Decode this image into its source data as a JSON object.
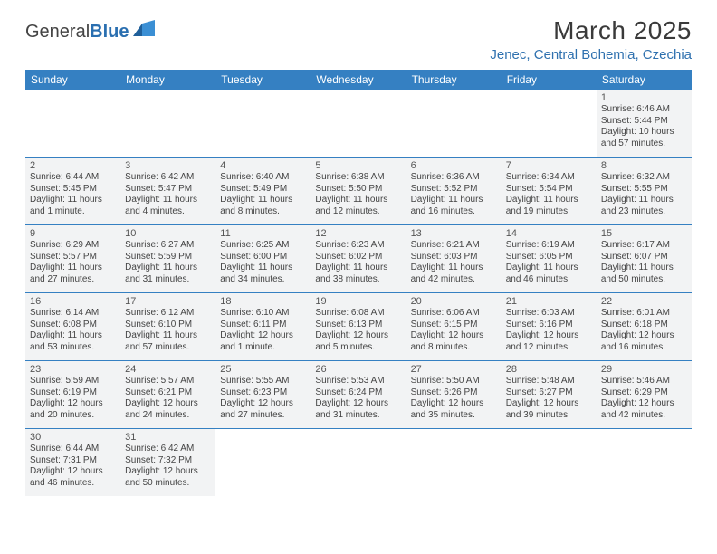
{
  "brand": {
    "part1": "General",
    "part2": "Blue"
  },
  "title": "March 2025",
  "location": "Jenec, Central Bohemia, Czechia",
  "colors": {
    "header_bg": "#3580c2",
    "header_text": "#ffffff",
    "cell_bg": "#f2f3f4",
    "rule": "#3580c2",
    "location_text": "#2f71af",
    "logo_blue": "#2a6fb0"
  },
  "weekdays": [
    "Sunday",
    "Monday",
    "Tuesday",
    "Wednesday",
    "Thursday",
    "Friday",
    "Saturday"
  ],
  "weeks": [
    [
      null,
      null,
      null,
      null,
      null,
      null,
      {
        "n": "1",
        "sunrise": "Sunrise: 6:46 AM",
        "sunset": "Sunset: 5:44 PM",
        "daylight1": "Daylight: 10 hours",
        "daylight2": "and 57 minutes."
      }
    ],
    [
      {
        "n": "2",
        "sunrise": "Sunrise: 6:44 AM",
        "sunset": "Sunset: 5:45 PM",
        "daylight1": "Daylight: 11 hours",
        "daylight2": "and 1 minute."
      },
      {
        "n": "3",
        "sunrise": "Sunrise: 6:42 AM",
        "sunset": "Sunset: 5:47 PM",
        "daylight1": "Daylight: 11 hours",
        "daylight2": "and 4 minutes."
      },
      {
        "n": "4",
        "sunrise": "Sunrise: 6:40 AM",
        "sunset": "Sunset: 5:49 PM",
        "daylight1": "Daylight: 11 hours",
        "daylight2": "and 8 minutes."
      },
      {
        "n": "5",
        "sunrise": "Sunrise: 6:38 AM",
        "sunset": "Sunset: 5:50 PM",
        "daylight1": "Daylight: 11 hours",
        "daylight2": "and 12 minutes."
      },
      {
        "n": "6",
        "sunrise": "Sunrise: 6:36 AM",
        "sunset": "Sunset: 5:52 PM",
        "daylight1": "Daylight: 11 hours",
        "daylight2": "and 16 minutes."
      },
      {
        "n": "7",
        "sunrise": "Sunrise: 6:34 AM",
        "sunset": "Sunset: 5:54 PM",
        "daylight1": "Daylight: 11 hours",
        "daylight2": "and 19 minutes."
      },
      {
        "n": "8",
        "sunrise": "Sunrise: 6:32 AM",
        "sunset": "Sunset: 5:55 PM",
        "daylight1": "Daylight: 11 hours",
        "daylight2": "and 23 minutes."
      }
    ],
    [
      {
        "n": "9",
        "sunrise": "Sunrise: 6:29 AM",
        "sunset": "Sunset: 5:57 PM",
        "daylight1": "Daylight: 11 hours",
        "daylight2": "and 27 minutes."
      },
      {
        "n": "10",
        "sunrise": "Sunrise: 6:27 AM",
        "sunset": "Sunset: 5:59 PM",
        "daylight1": "Daylight: 11 hours",
        "daylight2": "and 31 minutes."
      },
      {
        "n": "11",
        "sunrise": "Sunrise: 6:25 AM",
        "sunset": "Sunset: 6:00 PM",
        "daylight1": "Daylight: 11 hours",
        "daylight2": "and 34 minutes."
      },
      {
        "n": "12",
        "sunrise": "Sunrise: 6:23 AM",
        "sunset": "Sunset: 6:02 PM",
        "daylight1": "Daylight: 11 hours",
        "daylight2": "and 38 minutes."
      },
      {
        "n": "13",
        "sunrise": "Sunrise: 6:21 AM",
        "sunset": "Sunset: 6:03 PM",
        "daylight1": "Daylight: 11 hours",
        "daylight2": "and 42 minutes."
      },
      {
        "n": "14",
        "sunrise": "Sunrise: 6:19 AM",
        "sunset": "Sunset: 6:05 PM",
        "daylight1": "Daylight: 11 hours",
        "daylight2": "and 46 minutes."
      },
      {
        "n": "15",
        "sunrise": "Sunrise: 6:17 AM",
        "sunset": "Sunset: 6:07 PM",
        "daylight1": "Daylight: 11 hours",
        "daylight2": "and 50 minutes."
      }
    ],
    [
      {
        "n": "16",
        "sunrise": "Sunrise: 6:14 AM",
        "sunset": "Sunset: 6:08 PM",
        "daylight1": "Daylight: 11 hours",
        "daylight2": "and 53 minutes."
      },
      {
        "n": "17",
        "sunrise": "Sunrise: 6:12 AM",
        "sunset": "Sunset: 6:10 PM",
        "daylight1": "Daylight: 11 hours",
        "daylight2": "and 57 minutes."
      },
      {
        "n": "18",
        "sunrise": "Sunrise: 6:10 AM",
        "sunset": "Sunset: 6:11 PM",
        "daylight1": "Daylight: 12 hours",
        "daylight2": "and 1 minute."
      },
      {
        "n": "19",
        "sunrise": "Sunrise: 6:08 AM",
        "sunset": "Sunset: 6:13 PM",
        "daylight1": "Daylight: 12 hours",
        "daylight2": "and 5 minutes."
      },
      {
        "n": "20",
        "sunrise": "Sunrise: 6:06 AM",
        "sunset": "Sunset: 6:15 PM",
        "daylight1": "Daylight: 12 hours",
        "daylight2": "and 8 minutes."
      },
      {
        "n": "21",
        "sunrise": "Sunrise: 6:03 AM",
        "sunset": "Sunset: 6:16 PM",
        "daylight1": "Daylight: 12 hours",
        "daylight2": "and 12 minutes."
      },
      {
        "n": "22",
        "sunrise": "Sunrise: 6:01 AM",
        "sunset": "Sunset: 6:18 PM",
        "daylight1": "Daylight: 12 hours",
        "daylight2": "and 16 minutes."
      }
    ],
    [
      {
        "n": "23",
        "sunrise": "Sunrise: 5:59 AM",
        "sunset": "Sunset: 6:19 PM",
        "daylight1": "Daylight: 12 hours",
        "daylight2": "and 20 minutes."
      },
      {
        "n": "24",
        "sunrise": "Sunrise: 5:57 AM",
        "sunset": "Sunset: 6:21 PM",
        "daylight1": "Daylight: 12 hours",
        "daylight2": "and 24 minutes."
      },
      {
        "n": "25",
        "sunrise": "Sunrise: 5:55 AM",
        "sunset": "Sunset: 6:23 PM",
        "daylight1": "Daylight: 12 hours",
        "daylight2": "and 27 minutes."
      },
      {
        "n": "26",
        "sunrise": "Sunrise: 5:53 AM",
        "sunset": "Sunset: 6:24 PM",
        "daylight1": "Daylight: 12 hours",
        "daylight2": "and 31 minutes."
      },
      {
        "n": "27",
        "sunrise": "Sunrise: 5:50 AM",
        "sunset": "Sunset: 6:26 PM",
        "daylight1": "Daylight: 12 hours",
        "daylight2": "and 35 minutes."
      },
      {
        "n": "28",
        "sunrise": "Sunrise: 5:48 AM",
        "sunset": "Sunset: 6:27 PM",
        "daylight1": "Daylight: 12 hours",
        "daylight2": "and 39 minutes."
      },
      {
        "n": "29",
        "sunrise": "Sunrise: 5:46 AM",
        "sunset": "Sunset: 6:29 PM",
        "daylight1": "Daylight: 12 hours",
        "daylight2": "and 42 minutes."
      }
    ],
    [
      {
        "n": "30",
        "sunrise": "Sunrise: 6:44 AM",
        "sunset": "Sunset: 7:31 PM",
        "daylight1": "Daylight: 12 hours",
        "daylight2": "and 46 minutes."
      },
      {
        "n": "31",
        "sunrise": "Sunrise: 6:42 AM",
        "sunset": "Sunset: 7:32 PM",
        "daylight1": "Daylight: 12 hours",
        "daylight2": "and 50 minutes."
      },
      null,
      null,
      null,
      null,
      null
    ]
  ]
}
